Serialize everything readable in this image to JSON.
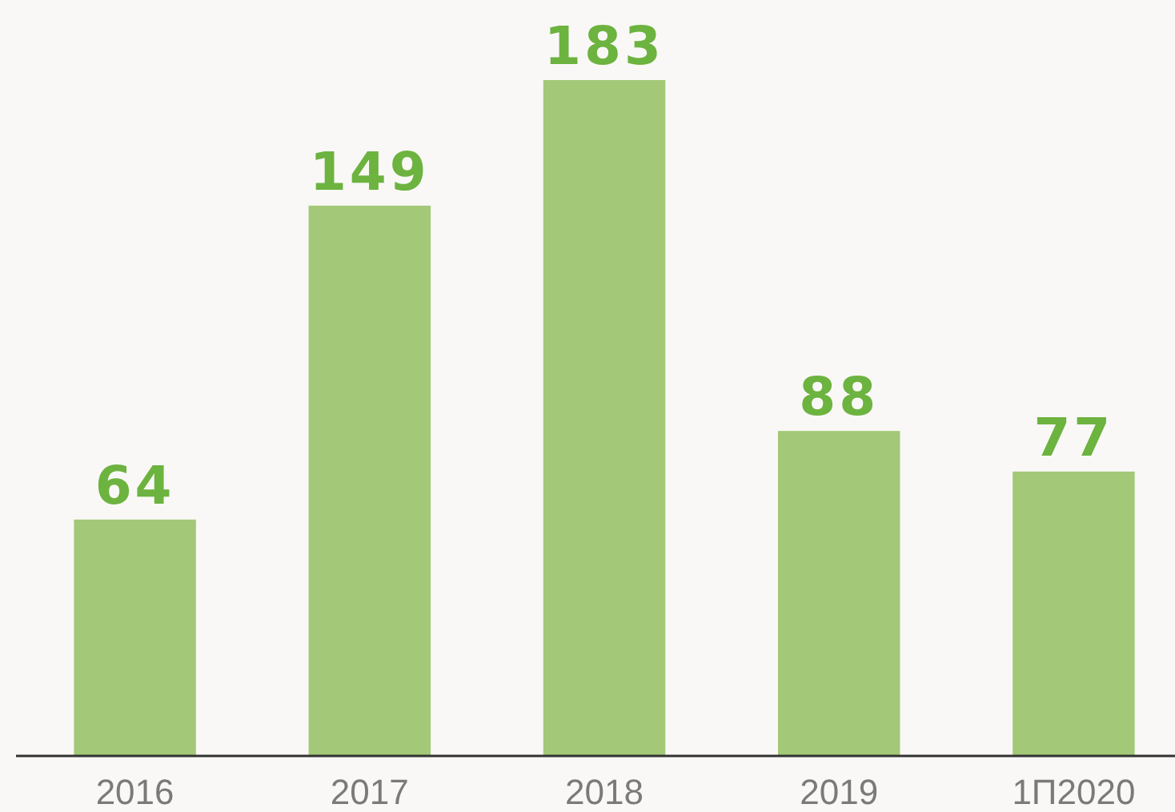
{
  "chart_data": {
    "type": "bar",
    "categories": [
      "2016",
      "2017",
      "2018",
      "2019",
      "1П2020"
    ],
    "values": [
      64,
      149,
      183,
      88,
      77
    ],
    "color": "#a3c878",
    "data_labels": true
  }
}
